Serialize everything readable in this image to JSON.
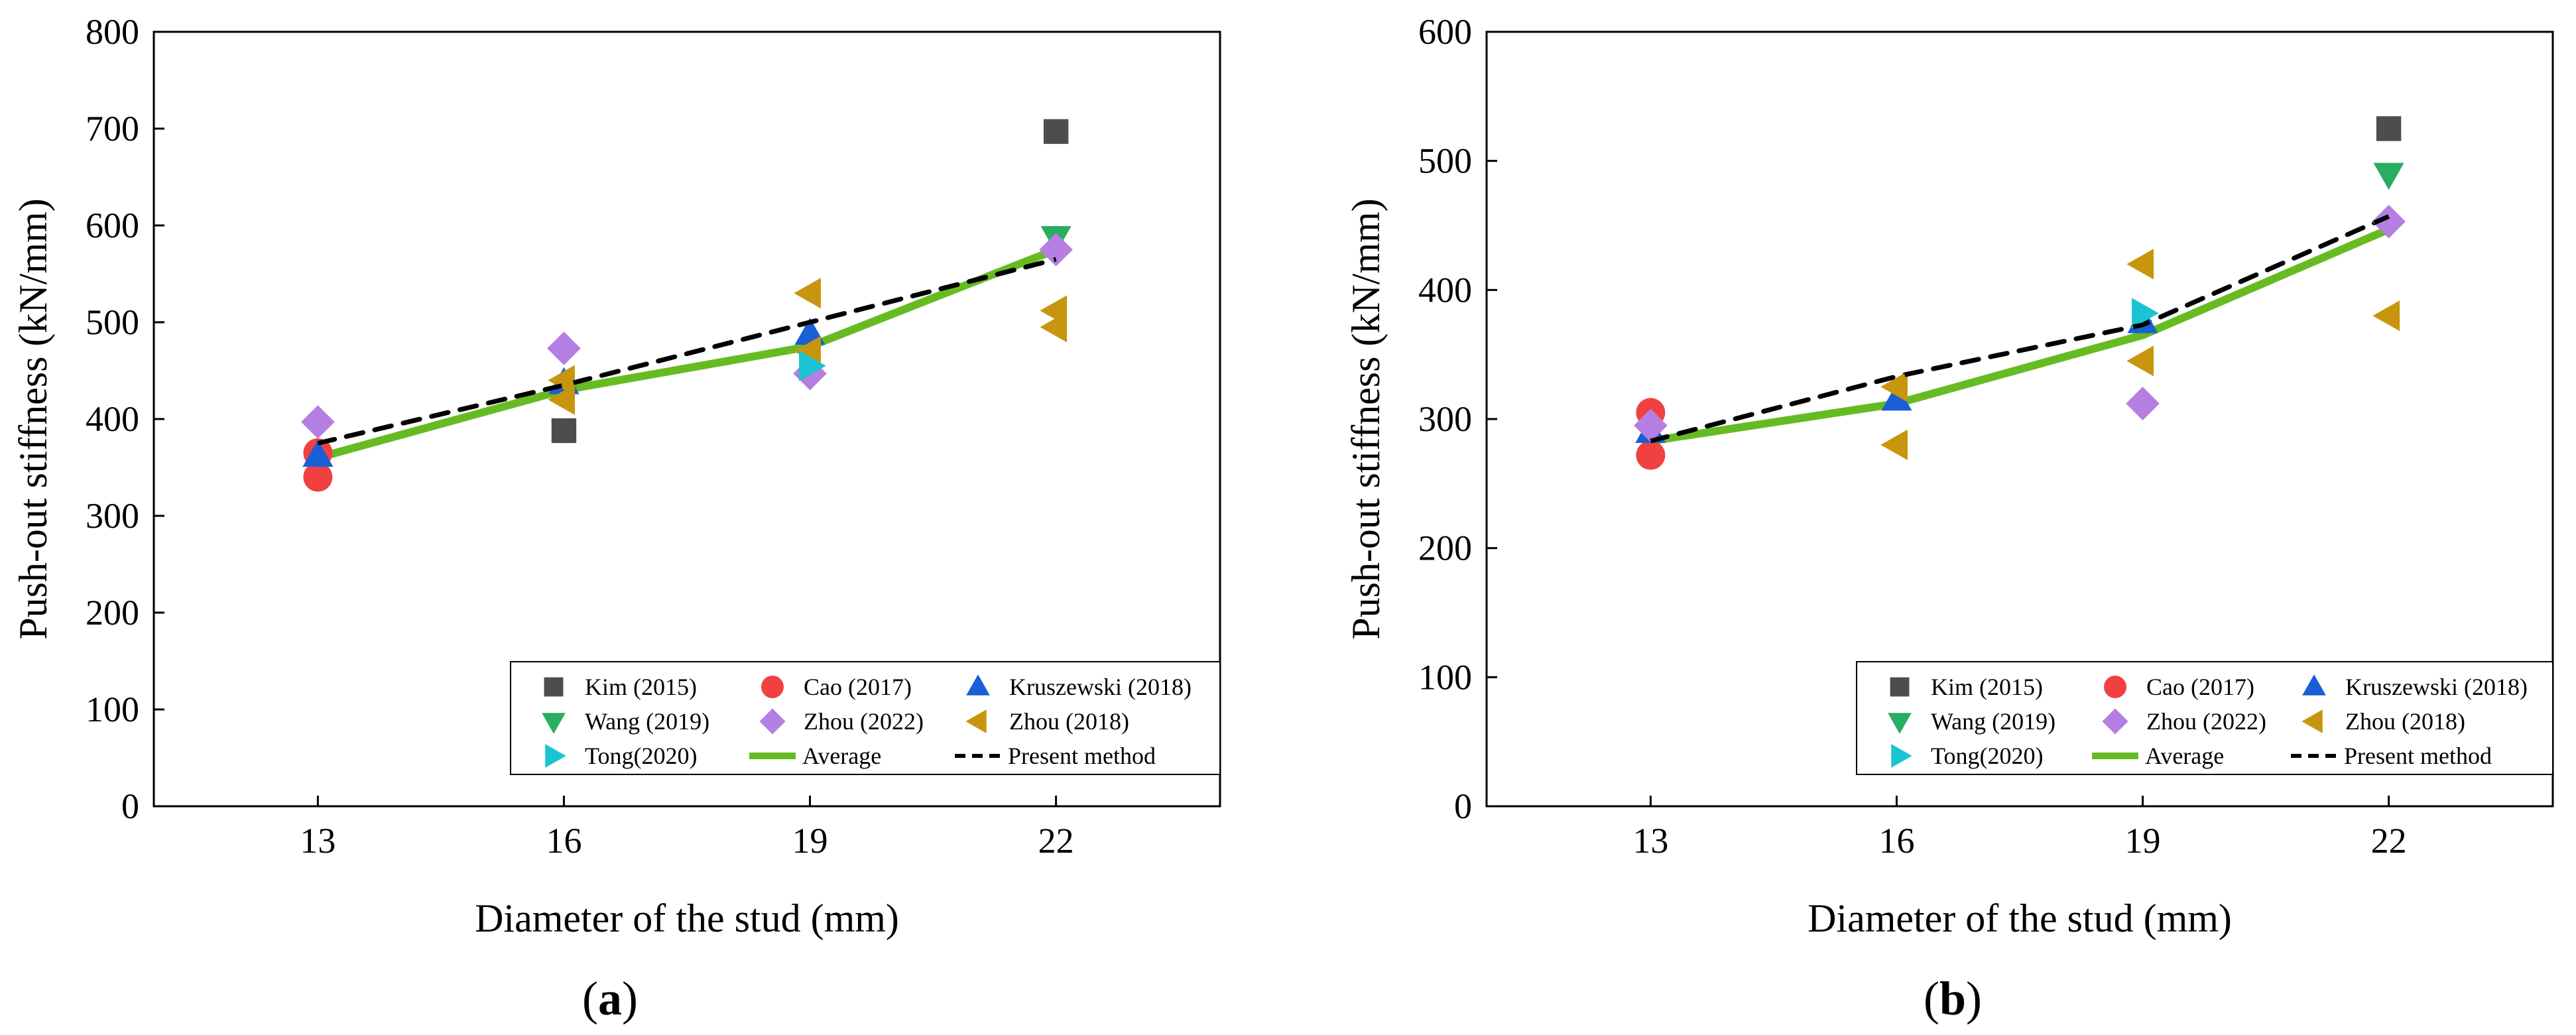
{
  "chart_data": [
    {
      "type": "scatter",
      "panel_label": "a",
      "caption_open": "(",
      "caption_close": ")",
      "xlabel": "Diameter of the stud (mm)",
      "ylabel": "Push-out stiffness (kN/mm)",
      "xlim": [
        11,
        24
      ],
      "ylim": [
        0,
        800
      ],
      "x_ticks": [
        13,
        16,
        19,
        22
      ],
      "y_ticks": [
        0,
        100,
        200,
        300,
        400,
        500,
        600,
        700,
        800
      ],
      "series": [
        {
          "name": "Kim (2015)",
          "marker": "square",
          "color": "#4d4d4d",
          "points": [
            [
              16,
              388
            ],
            [
              22,
              697
            ]
          ]
        },
        {
          "name": "Cao (2017)",
          "marker": "circle",
          "color": "#f04040",
          "points": [
            [
              13,
              340
            ],
            [
              13,
              365
            ]
          ]
        },
        {
          "name": "Kruszewski (2018)",
          "marker": "triangle-up",
          "color": "#1a5fd6",
          "points": [
            [
              13,
              362
            ],
            [
              16,
              437
            ],
            [
              19,
              488
            ]
          ]
        },
        {
          "name": "Wang (2019)",
          "marker": "triangle-down",
          "color": "#27ae60",
          "points": [
            [
              22,
              588
            ]
          ]
        },
        {
          "name": "Zhou (2022)",
          "marker": "diamond",
          "color": "#b57ee3",
          "points": [
            [
              13,
              397
            ],
            [
              16,
              473
            ],
            [
              19,
              447
            ],
            [
              22,
              575
            ]
          ]
        },
        {
          "name": "Zhou (2018)",
          "marker": "triangle-left",
          "color": "#c8960e",
          "points": [
            [
              16,
              420
            ],
            [
              16,
              440
            ],
            [
              19,
              470
            ],
            [
              19,
              530
            ],
            [
              22,
              495
            ],
            [
              22,
              512
            ]
          ]
        },
        {
          "name": "Tong(2020)",
          "marker": "triangle-right",
          "color": "#1ac4d4",
          "points": [
            [
              19,
              455
            ]
          ]
        },
        {
          "name": "Average",
          "marker": "line",
          "color": "#66bb22",
          "points": [
            [
              13,
              360
            ],
            [
              16,
              430
            ],
            [
              19,
              475
            ],
            [
              22,
              575
            ]
          ]
        },
        {
          "name": "Present method",
          "marker": "dashed",
          "color": "#000000",
          "points": [
            [
              13,
              375
            ],
            [
              16,
              435
            ],
            [
              19,
              500
            ],
            [
              22,
              565
            ]
          ]
        }
      ]
    },
    {
      "type": "scatter",
      "panel_label": "b",
      "caption_open": "(",
      "caption_close": ")",
      "xlabel": "Diameter of the stud (mm)",
      "ylabel": "Push-out stiffness (kN/mm)",
      "xlim": [
        11,
        24
      ],
      "ylim": [
        0,
        600
      ],
      "x_ticks": [
        13,
        16,
        19,
        22
      ],
      "y_ticks": [
        0,
        100,
        200,
        300,
        400,
        500,
        600
      ],
      "series": [
        {
          "name": "Kim (2015)",
          "marker": "square",
          "color": "#4d4d4d",
          "points": [
            [
              22,
              525
            ]
          ]
        },
        {
          "name": "Cao (2017)",
          "marker": "circle",
          "color": "#f04040",
          "points": [
            [
              13,
              272
            ],
            [
              13,
              305
            ]
          ]
        },
        {
          "name": "Kruszewski (2018)",
          "marker": "triangle-up",
          "color": "#1a5fd6",
          "points": [
            [
              13,
              290
            ],
            [
              16,
              315
            ],
            [
              19,
              375
            ]
          ]
        },
        {
          "name": "Wang (2019)",
          "marker": "triangle-down",
          "color": "#27ae60",
          "points": [
            [
              22,
              490
            ]
          ]
        },
        {
          "name": "Zhou (2022)",
          "marker": "diamond",
          "color": "#b57ee3",
          "points": [
            [
              13,
              295
            ],
            [
              19,
              312
            ],
            [
              22,
              453
            ]
          ]
        },
        {
          "name": "Zhou (2018)",
          "marker": "triangle-left",
          "color": "#c8960e",
          "points": [
            [
              16,
              280
            ],
            [
              16,
              325
            ],
            [
              19,
              345
            ],
            [
              19,
              420
            ],
            [
              22,
              380
            ]
          ]
        },
        {
          "name": "Tong(2020)",
          "marker": "triangle-right",
          "color": "#1ac4d4",
          "points": [
            [
              19,
              382
            ]
          ]
        },
        {
          "name": "Average",
          "marker": "line",
          "color": "#66bb22",
          "points": [
            [
              13,
              283
            ],
            [
              16,
              312
            ],
            [
              19,
              365
            ],
            [
              22,
              447
            ]
          ]
        },
        {
          "name": "Present method",
          "marker": "dashed",
          "color": "#000000",
          "points": [
            [
              13,
              283
            ],
            [
              16,
              333
            ],
            [
              19,
              373
            ],
            [
              22,
              457
            ]
          ]
        }
      ]
    }
  ]
}
